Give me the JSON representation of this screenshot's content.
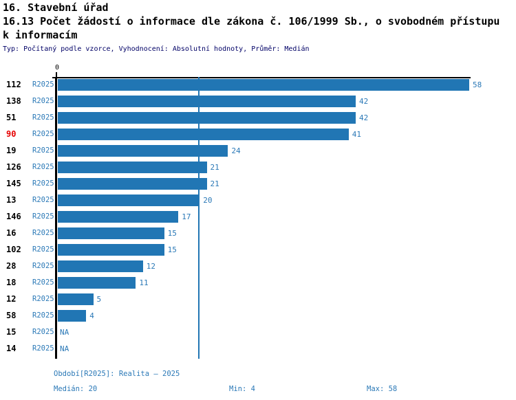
{
  "header": {
    "title": "16. Stavební úřad",
    "subtitle_line1": "16.13 Počet žádostí o informace dle zákona č. 106/1999 Sb., o svobodném přístupu",
    "subtitle_line2": "k informacím",
    "meta": "Typ: Počítaný podle vzorce, Vyhodnocení: Absolutní hodnoty, Průměr: Medián"
  },
  "chart_data": {
    "type": "bar",
    "orientation": "horizontal",
    "title": "16.13 Počet žádostí o informace dle zákona č. 106/1999 Sb., o svobodném přístupu k informacím",
    "xlim": [
      0,
      58
    ],
    "axis_zero_label": "0",
    "median_line_value": 20,
    "na_label": "NA",
    "series_name": "R2025",
    "rows": [
      {
        "id": "112",
        "period": "R2025",
        "value": 58
      },
      {
        "id": "138",
        "period": "R2025",
        "value": 42
      },
      {
        "id": "51",
        "period": "R2025",
        "value": 42
      },
      {
        "id": "90",
        "period": "R2025",
        "value": 41,
        "highlight": true
      },
      {
        "id": "19",
        "period": "R2025",
        "value": 24
      },
      {
        "id": "126",
        "period": "R2025",
        "value": 21
      },
      {
        "id": "145",
        "period": "R2025",
        "value": 21
      },
      {
        "id": "13",
        "period": "R2025",
        "value": 20
      },
      {
        "id": "146",
        "period": "R2025",
        "value": 17
      },
      {
        "id": "16",
        "period": "R2025",
        "value": 15
      },
      {
        "id": "102",
        "period": "R2025",
        "value": 15
      },
      {
        "id": "28",
        "period": "R2025",
        "value": 12
      },
      {
        "id": "18",
        "period": "R2025",
        "value": 11
      },
      {
        "id": "12",
        "period": "R2025",
        "value": 5
      },
      {
        "id": "58",
        "period": "R2025",
        "value": 4
      },
      {
        "id": "15",
        "period": "R2025",
        "value": null
      },
      {
        "id": "14",
        "period": "R2025",
        "value": null
      }
    ]
  },
  "footer": {
    "period_line": "Období[R2025]: Realita – 2025",
    "median": "Medián: 20",
    "min": "Min: 4",
    "max": "Max: 58"
  },
  "colors": {
    "bar": "#2176b4",
    "accent_text": "#2b79b7",
    "highlight": "#e60000",
    "meta_text": "#000066",
    "axis": "#000000",
    "background": "#ffffff"
  }
}
